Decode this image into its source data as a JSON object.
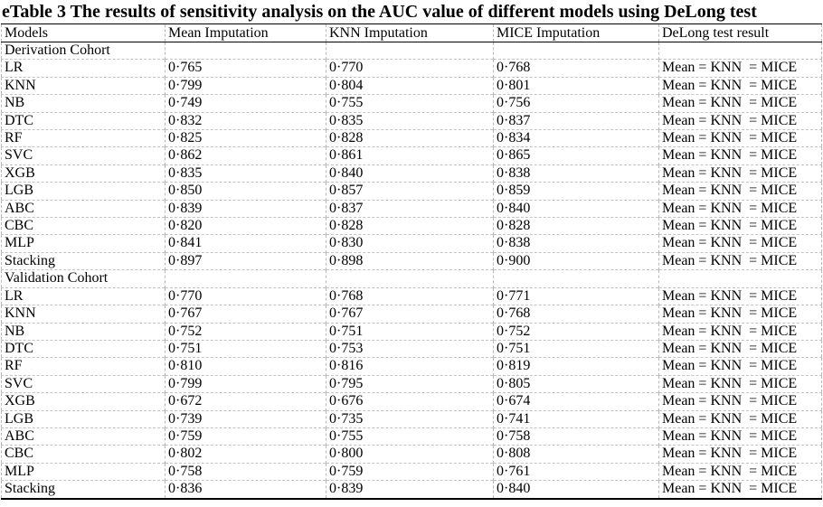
{
  "title": "eTable 3 The results of sensitivity analysis on the AUC value of different models using DeLong test",
  "table": {
    "columns": [
      "Models",
      "Mean Imputation",
      "KNN Imputation",
      "MICE Imputation",
      "DeLong test result"
    ],
    "sections": [
      {
        "label": "Derivation Cohort",
        "rows": [
          {
            "model": "LR",
            "mean": "0·765",
            "knn": "0·770",
            "mice": "0·768",
            "delong": "Mean = KNN  = MICE"
          },
          {
            "model": "KNN",
            "mean": "0·799",
            "knn": "0·804",
            "mice": "0·801",
            "delong": "Mean = KNN  = MICE"
          },
          {
            "model": "NB",
            "mean": "0·749",
            "knn": "0·755",
            "mice": "0·756",
            "delong": "Mean = KNN  = MICE"
          },
          {
            "model": "DTC",
            "mean": "0·832",
            "knn": "0·835",
            "mice": "0·837",
            "delong": "Mean = KNN  = MICE"
          },
          {
            "model": "RF",
            "mean": "0·825",
            "knn": "0·828",
            "mice": "0·834",
            "delong": "Mean = KNN  = MICE"
          },
          {
            "model": "SVC",
            "mean": "0·862",
            "knn": "0·861",
            "mice": "0·865",
            "delong": "Mean = KNN  = MICE"
          },
          {
            "model": "XGB",
            "mean": "0·835",
            "knn": "0·840",
            "mice": "0·838",
            "delong": "Mean = KNN  = MICE"
          },
          {
            "model": "LGB",
            "mean": "0·850",
            "knn": "0·857",
            "mice": "0·859",
            "delong": "Mean = KNN  = MICE"
          },
          {
            "model": "ABC",
            "mean": "0·839",
            "knn": "0·837",
            "mice": "0·840",
            "delong": "Mean = KNN  = MICE"
          },
          {
            "model": "CBC",
            "mean": "0·820",
            "knn": "0·828",
            "mice": "0·828",
            "delong": "Mean = KNN  = MICE"
          },
          {
            "model": "MLP",
            "mean": "0·841",
            "knn": "0·830",
            "mice": "0·838",
            "delong": "Mean = KNN  = MICE"
          },
          {
            "model": "Stacking",
            "mean": "0·897",
            "knn": "0·898",
            "mice": "0·900",
            "delong": "Mean = KNN  = MICE"
          }
        ]
      },
      {
        "label": "Validation Cohort",
        "rows": [
          {
            "model": "LR",
            "mean": "0·770",
            "knn": "0·768",
            "mice": "0·771",
            "delong": "Mean = KNN  = MICE"
          },
          {
            "model": "KNN",
            "mean": "0·767",
            "knn": "0·767",
            "mice": "0·768",
            "delong": "Mean = KNN  = MICE"
          },
          {
            "model": "NB",
            "mean": "0·752",
            "knn": "0·751",
            "mice": "0·752",
            "delong": "Mean = KNN  = MICE"
          },
          {
            "model": "DTC",
            "mean": "0·751",
            "knn": "0·753",
            "mice": "0·751",
            "delong": "Mean = KNN  = MICE"
          },
          {
            "model": "RF",
            "mean": "0·810",
            "knn": "0·816",
            "mice": "0·819",
            "delong": "Mean = KNN  = MICE"
          },
          {
            "model": "SVC",
            "mean": "0·799",
            "knn": "0·795",
            "mice": "0·805",
            "delong": "Mean = KNN  = MICE"
          },
          {
            "model": "XGB",
            "mean": "0·672",
            "knn": "0·676",
            "mice": "0·674",
            "delong": "Mean = KNN  = MICE"
          },
          {
            "model": "LGB",
            "mean": "0·739",
            "knn": "0·735",
            "mice": "0·741",
            "delong": "Mean = KNN  = MICE"
          },
          {
            "model": "ABC",
            "mean": "0·759",
            "knn": "0·755",
            "mice": "0·758",
            "delong": "Mean = KNN  = MICE"
          },
          {
            "model": "CBC",
            "mean": "0·802",
            "knn": "0·800",
            "mice": "0·808",
            "delong": "Mean = KNN  = MICE"
          },
          {
            "model": "MLP",
            "mean": "0·758",
            "knn": "0·759",
            "mice": "0·761",
            "delong": "Mean = KNN  = MICE"
          },
          {
            "model": "Stacking",
            "mean": "0·836",
            "knn": "0·839",
            "mice": "0·840",
            "delong": "Mean = KNN  = MICE"
          }
        ]
      }
    ]
  }
}
